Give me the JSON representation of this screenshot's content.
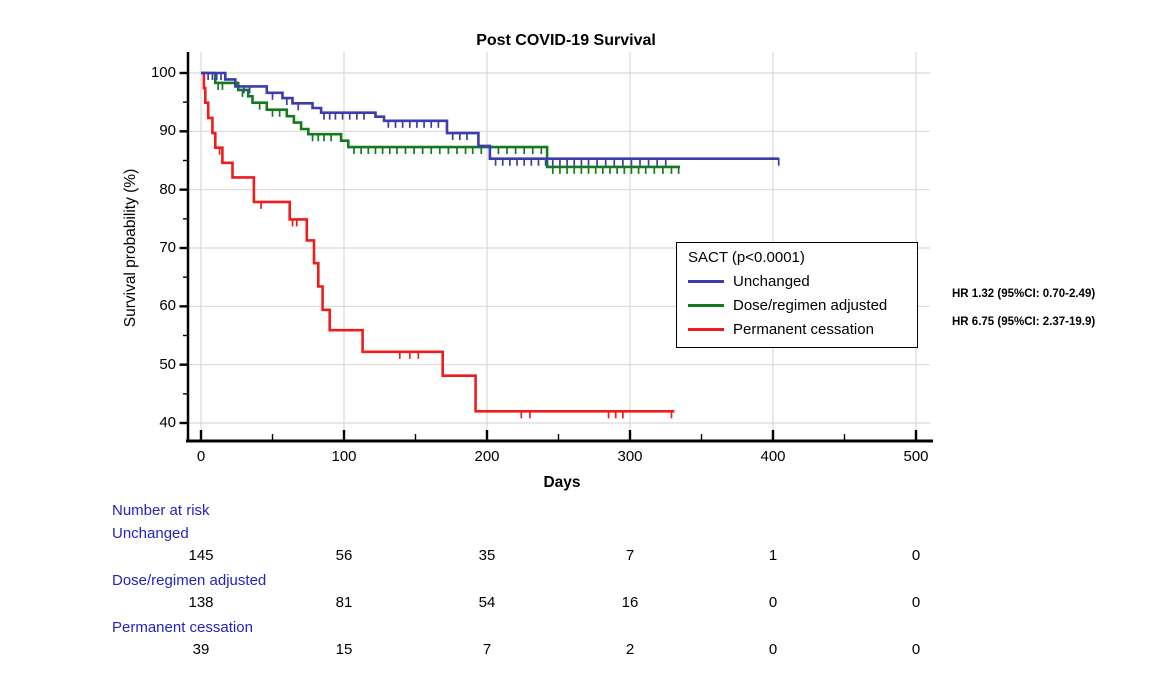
{
  "title": "Post COVID-19 Survival",
  "y_axis": {
    "label": "Survival probability (%)",
    "ticks": [
      100,
      90,
      80,
      70,
      60,
      50,
      40
    ]
  },
  "x_axis": {
    "label": "Days",
    "ticks": [
      0,
      100,
      200,
      300,
      400,
      500
    ]
  },
  "legend": {
    "title": "SACT (p<0.0001)",
    "items": [
      {
        "label": "Unchanged",
        "color": "#3c3cac"
      },
      {
        "label": "Dose/regimen adjusted",
        "color": "#157a1e"
      },
      {
        "label": "Permanent cessation",
        "color": "#ee1c1c"
      }
    ]
  },
  "annotations": {
    "hr_lines": [
      "HR 1.32 (95%CI: 0.70-2.49)",
      "HR 6.75 (95%CI: 2.37-19.9)"
    ]
  },
  "risk_table": {
    "header": "Number at risk",
    "columns_days": [
      0,
      100,
      200,
      300,
      400,
      500
    ],
    "groups": [
      {
        "label": "Unchanged",
        "counts": [
          145,
          56,
          35,
          7,
          1,
          0
        ]
      },
      {
        "label": "Dose/regimen adjusted",
        "counts": [
          138,
          81,
          54,
          16,
          0,
          0
        ]
      },
      {
        "label": "Permanent cessation",
        "counts": [
          39,
          15,
          7,
          2,
          0,
          0
        ]
      }
    ]
  },
  "colors": {
    "gridline": "#d9d9d9",
    "axis": "#000000",
    "risk_label_blue": "#2323c1"
  },
  "chart_data": {
    "type": "line",
    "variant": "kaplan-meier-step",
    "title": "Post COVID-19 Survival",
    "xlabel": "Days",
    "ylabel": "Survival probability (%)",
    "xlim": [
      0,
      512
    ],
    "ylim": [
      38,
      102
    ],
    "grid": true,
    "legend_position": "inside-right",
    "series": [
      {
        "name": "Unchanged",
        "color": "#3c3cac",
        "n_at_start": 145,
        "points": [
          [
            0,
            100
          ],
          [
            17,
            98.9
          ],
          [
            24,
            97.7
          ],
          [
            46,
            96.6
          ],
          [
            57,
            95.7
          ],
          [
            64,
            94.8
          ],
          [
            78,
            94.0
          ],
          [
            84,
            93.2
          ],
          [
            122,
            92.5
          ],
          [
            128,
            91.8
          ],
          [
            172,
            89.7
          ],
          [
            194,
            87.5
          ],
          [
            202,
            85.3
          ],
          [
            404,
            85.3
          ]
        ],
        "censor_days": [
          5,
          8,
          11,
          14,
          30,
          34,
          50,
          60,
          68,
          86,
          90,
          94,
          99,
          104,
          109,
          114,
          131,
          136,
          141,
          146,
          151,
          156,
          161,
          166,
          176,
          181,
          186,
          206,
          211,
          216,
          221,
          226,
          231,
          236,
          241,
          246,
          251,
          256,
          261,
          266,
          271,
          277,
          283,
          289,
          295,
          301,
          307,
          313,
          319,
          325,
          404
        ]
      },
      {
        "name": "Dose/regimen adjusted",
        "color": "#157a1e",
        "n_at_start": 138,
        "points": [
          [
            0,
            100
          ],
          [
            10,
            98.3
          ],
          [
            26,
            97.1
          ],
          [
            33,
            96.0
          ],
          [
            36,
            94.9
          ],
          [
            46,
            93.7
          ],
          [
            60,
            92.6
          ],
          [
            65,
            91.5
          ],
          [
            70,
            90.4
          ],
          [
            75,
            89.5
          ],
          [
            98,
            88.4
          ],
          [
            103,
            87.3
          ],
          [
            242,
            83.9
          ],
          [
            335,
            83.9
          ]
        ],
        "censor_days": [
          12,
          15,
          29,
          41,
          50,
          55,
          78,
          82,
          86,
          91,
          107,
          112,
          117,
          122,
          127,
          132,
          137,
          143,
          149,
          155,
          161,
          167,
          173,
          179,
          185,
          190,
          196,
          202,
          208,
          214,
          220,
          226,
          232,
          238,
          246,
          251,
          256,
          261,
          266,
          271,
          276,
          281,
          286,
          291,
          296,
          301,
          306,
          311,
          317,
          323,
          329,
          334
        ]
      },
      {
        "name": "Permanent cessation",
        "color": "#ee1c1c",
        "n_at_start": 39,
        "points": [
          [
            0,
            100
          ],
          [
            2,
            97.4
          ],
          [
            3,
            94.9
          ],
          [
            5,
            92.3
          ],
          [
            8,
            89.7
          ],
          [
            10,
            87.2
          ],
          [
            15,
            84.6
          ],
          [
            22,
            82.1
          ],
          [
            37,
            77.9
          ],
          [
            62,
            74.9
          ],
          [
            74,
            71.3
          ],
          [
            79,
            67.4
          ],
          [
            82,
            63.4
          ],
          [
            85,
            59.4
          ],
          [
            90,
            55.9
          ],
          [
            113,
            52.2
          ],
          [
            169,
            48.1
          ],
          [
            192,
            42.0
          ],
          [
            331,
            42.0
          ]
        ],
        "censor_days": [
          13,
          42,
          64,
          67,
          139,
          146,
          152,
          224,
          230,
          285,
          290,
          295,
          329
        ]
      }
    ]
  }
}
